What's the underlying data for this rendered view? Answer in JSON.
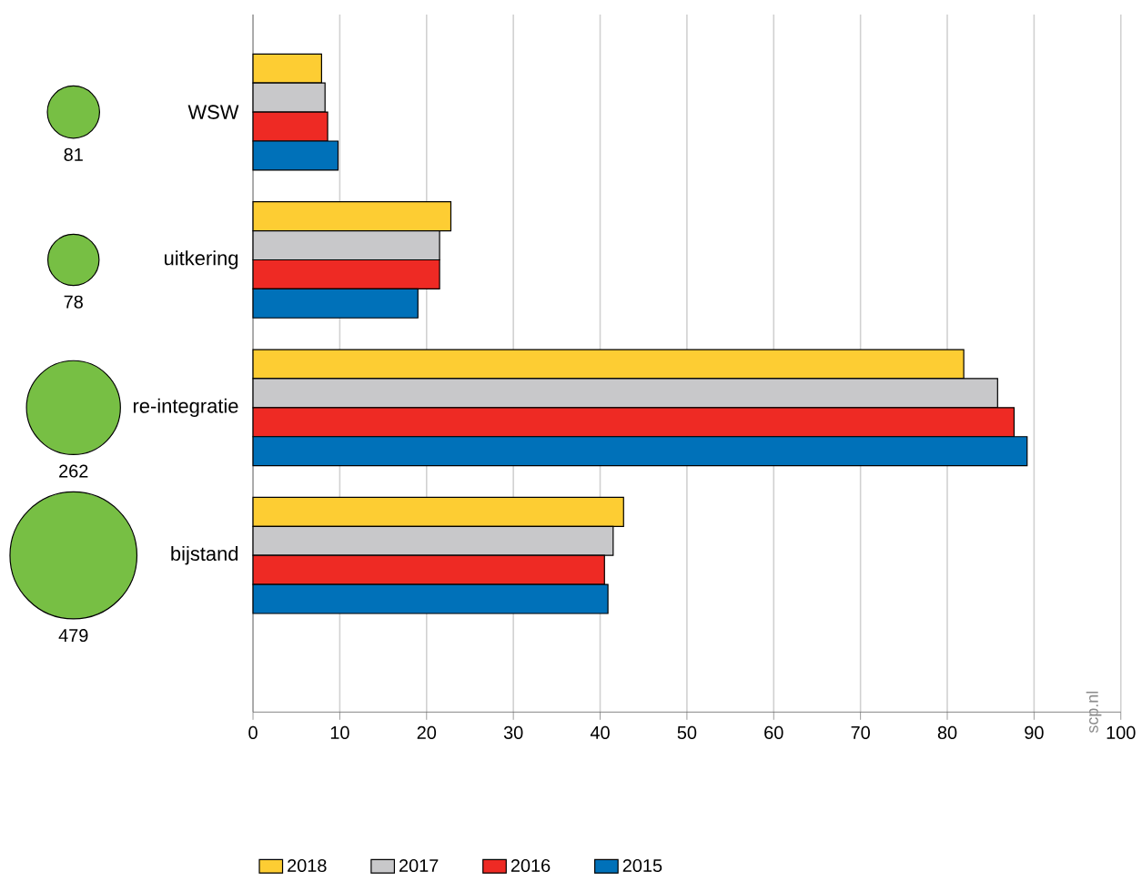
{
  "chart_data": [
    {
      "type": "other",
      "categories": [
        null,
        null,
        null,
        null
      ],
      "values": [
        81,
        78,
        262,
        479
      ],
      "color": "#77bf44",
      "data_labels": true
    },
    {
      "type": "bar",
      "orientation": "horizontal",
      "categories": [
        "WSW",
        "uitkering",
        "re-integratie",
        "bijstand"
      ],
      "series": [
        {
          "name": "2018",
          "color": "#fdcd33",
          "values": [
            7.9,
            22.8,
            81.9,
            42.7
          ]
        },
        {
          "name": "2017",
          "color": "#c8c8ca",
          "values": [
            8.3,
            21.5,
            85.8,
            41.5
          ]
        },
        {
          "name": "2016",
          "color": "#ee2a24",
          "values": [
            8.6,
            21.5,
            87.7,
            40.5
          ]
        },
        {
          "name": "2015",
          "color": "#0071b9",
          "values": [
            9.8,
            19.0,
            89.2,
            40.9
          ]
        }
      ],
      "xlim": [
        0,
        100
      ],
      "xticks": [
        0,
        10,
        20,
        30,
        40,
        50,
        60,
        70,
        80,
        90,
        100
      ],
      "grid": "x",
      "legend": "bottom",
      "annotations": [
        "scp.nl"
      ]
    }
  ]
}
